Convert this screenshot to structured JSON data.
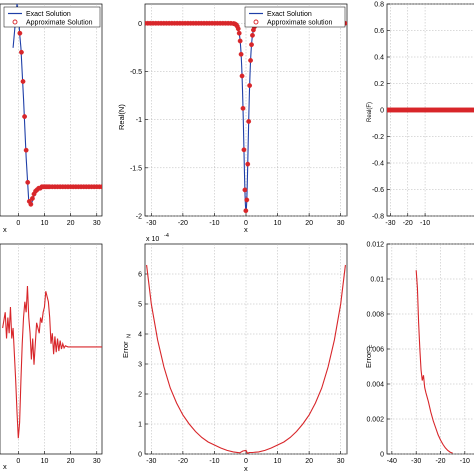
{
  "colors": {
    "exact": "#1f3fa8",
    "approx": "#d8262a",
    "error": "#d8262a"
  },
  "chart_data": [
    {
      "id": "p1",
      "type": "line",
      "xlabel": "x",
      "ylabel": "",
      "xlim": [
        -7,
        32
      ],
      "ylim": [
        -1.1,
        0.35
      ],
      "xticks": [
        0,
        10,
        20,
        30
      ],
      "yticks": [],
      "legend": {
        "placement": "top-right",
        "entries": [
          "Exact Solution",
          "Approximate Solution"
        ]
      },
      "series": [
        {
          "name": "Exact Solution",
          "style": "line",
          "color": "exact",
          "x": [
            -2,
            -1,
            -0.5,
            0,
            0.5,
            1,
            2,
            3,
            4,
            5,
            6,
            7,
            8,
            10,
            12,
            15,
            20,
            25,
            32
          ],
          "y": [
            0.05,
            0.25,
            0.35,
            0.3,
            0.15,
            0.05,
            -0.3,
            -0.7,
            -1.0,
            -1.02,
            -0.96,
            -0.93,
            -0.91,
            -0.9,
            -0.9,
            -0.9,
            -0.9,
            -0.9,
            -0.9
          ]
        },
        {
          "name": "Approximate Solution",
          "style": "markers",
          "color": "approx",
          "x": [
            -1,
            0,
            0.6,
            1.2,
            1.8,
            2.4,
            3,
            3.6,
            4.2,
            4.8,
            5.4,
            6,
            6.6,
            7.2,
            7.8,
            8.4,
            9,
            9.6,
            10.2,
            10.8,
            11.4,
            12,
            13,
            14,
            15,
            16,
            17,
            18,
            19,
            20,
            21,
            22,
            23,
            24,
            25,
            26,
            27,
            28,
            29,
            30,
            31,
            32
          ],
          "y": [
            0.25,
            0.3,
            0.15,
            0.02,
            -0.18,
            -0.42,
            -0.65,
            -0.87,
            -1.0,
            -1.02,
            -0.98,
            -0.95,
            -0.93,
            -0.92,
            -0.91,
            -0.91,
            -0.9,
            -0.9,
            -0.9,
            -0.9,
            -0.9,
            -0.9,
            -0.9,
            -0.9,
            -0.9,
            -0.9,
            -0.9,
            -0.9,
            -0.9,
            -0.9,
            -0.9,
            -0.9,
            -0.9,
            -0.9,
            -0.9,
            -0.9,
            -0.9,
            -0.9,
            -0.9,
            -0.9,
            -0.9,
            -0.9
          ]
        }
      ]
    },
    {
      "id": "p2",
      "type": "line",
      "xlabel": "x",
      "ylabel": "Real(N)",
      "xlim": [
        -32,
        32
      ],
      "ylim": [
        -2,
        0.2
      ],
      "xticks": [
        -30,
        -20,
        -10,
        0,
        10,
        20,
        30
      ],
      "yticks": [
        0,
        -0.5,
        -1,
        -1.5,
        -2
      ],
      "ytick_labels": [
        "0",
        "-0.5",
        "-1",
        "-1.5",
        "-2"
      ],
      "legend": {
        "placement": "top-right",
        "entries": [
          "Exact Solution",
          "Approximate solution"
        ]
      },
      "series": [
        {
          "name": "Exact Solution",
          "style": "line",
          "color": "exact",
          "func": "sech2",
          "amp": -1.95,
          "width": 1.0,
          "x": [
            -32,
            32
          ]
        },
        {
          "name": "Approximate solution",
          "style": "markers",
          "color": "approx",
          "func": "sech2",
          "amp": -1.95,
          "width": 1.0,
          "x": [
            -32,
            32
          ],
          "step_far": 0.85,
          "step_near": 0.3
        }
      ]
    },
    {
      "id": "p3",
      "type": "line",
      "xlabel": "",
      "ylabel": "Real(F)",
      "xlim": [
        -32,
        20
      ],
      "ylim": [
        -0.8,
        0.8
      ],
      "xticks": [
        -30,
        -20,
        -10
      ],
      "xtick_labels": [
        "-30",
        "-20",
        "-10"
      ],
      "yticks": [
        0.8,
        0.6,
        0.4,
        0.2,
        0,
        -0.2,
        -0.4,
        -0.6,
        -0.8
      ],
      "ytick_labels": [
        "0.8",
        "0.6",
        "0.4",
        "0.2",
        "0",
        "-0.2",
        "-0.4",
        "-0.6",
        "-0.8"
      ],
      "series": [
        {
          "name": "",
          "style": "markers",
          "color": "approx",
          "func": "zero",
          "x": [
            -32,
            20
          ],
          "step_far": 0.6
        }
      ]
    },
    {
      "id": "p4",
      "type": "line",
      "xlabel": "x",
      "ylabel": "",
      "xlim": [
        -7,
        32
      ],
      "ylim": [
        -1.0,
        1.0
      ],
      "xticks": [
        0,
        10,
        20,
        30
      ],
      "yticks": [],
      "series": [
        {
          "name": "",
          "style": "line",
          "color": "error",
          "x": [
            -6,
            -5,
            -4.5,
            -4,
            -3.5,
            -3,
            -2.5,
            -2,
            -1.5,
            -1,
            -0.5,
            0,
            0.5,
            1,
            1.5,
            2,
            2.5,
            3,
            3.5,
            4,
            4.5,
            5,
            5.5,
            6,
            6.5,
            7,
            7.5,
            8,
            8.5,
            9,
            9.5,
            10,
            10.5,
            11,
            11.5,
            12,
            12.5,
            13,
            13.5,
            14,
            14.5,
            15,
            15.5,
            16,
            16.5,
            17,
            17.5,
            18,
            19,
            20,
            22,
            25,
            28,
            32
          ],
          "y": [
            0.2,
            0.35,
            0.1,
            0.3,
            0.15,
            0.4,
            0.1,
            0.2,
            -0.05,
            -0.3,
            -0.6,
            -0.85,
            -0.7,
            -0.3,
            0.05,
            0.3,
            0.45,
            0.35,
            0.6,
            0.3,
            0.15,
            -0.1,
            0.1,
            -0.15,
            0.05,
            0.25,
            0.2,
            0.15,
            0.3,
            0.25,
            0.35,
            0.4,
            0.55,
            0.5,
            0.45,
            0.3,
            0.05,
            0.15,
            -0.05,
            0.12,
            -0.03,
            0.1,
            -0.02,
            0.08,
            0.0,
            0.05,
            0.01,
            0.03,
            0.02,
            0.02,
            0.02,
            0.02,
            0.02,
            0.02
          ]
        }
      ]
    },
    {
      "id": "p5",
      "type": "line",
      "xlabel": "x",
      "ylabel": "Error",
      "ylabel_sub": "N",
      "exponent_label": "x 10",
      "exponent_power": "-4",
      "xlim": [
        -32,
        32
      ],
      "ylim": [
        0,
        7
      ],
      "xticks": [
        -30,
        -20,
        -10,
        0,
        10,
        20,
        30
      ],
      "yticks": [
        0,
        1,
        2,
        3,
        4,
        5,
        6
      ],
      "ytick_labels": [
        "0",
        "1",
        "2",
        "3",
        "4",
        "5",
        "6"
      ],
      "series": [
        {
          "name": "",
          "style": "line",
          "color": "error",
          "x": [
            -31.5,
            -30,
            -28,
            -26,
            -24,
            -22,
            -20,
            -18,
            -16,
            -14,
            -12,
            -10,
            -8,
            -6,
            -4,
            -2,
            -1,
            0,
            0.5,
            1,
            2,
            4,
            6,
            8,
            10,
            12,
            14,
            16,
            18,
            20,
            22,
            24,
            26,
            28,
            30,
            31.5
          ],
          "y": [
            6.3,
            5.0,
            3.8,
            2.9,
            2.2,
            1.7,
            1.3,
            1.0,
            0.75,
            0.55,
            0.4,
            0.3,
            0.2,
            0.12,
            0.07,
            0.04,
            0.1,
            0.12,
            0.02,
            0.05,
            0.05,
            0.07,
            0.12,
            0.2,
            0.3,
            0.4,
            0.55,
            0.75,
            1.0,
            1.3,
            1.7,
            2.2,
            2.9,
            3.8,
            5.0,
            6.3
          ]
        }
      ]
    },
    {
      "id": "p6",
      "type": "line",
      "xlabel": "",
      "ylabel": "Error",
      "ylabel_sub": "F",
      "xlim": [
        -42,
        -5
      ],
      "ylim": [
        0,
        0.012
      ],
      "xticks": [
        -40,
        -30,
        -20,
        -10
      ],
      "xtick_labels": [
        "-40",
        "-30",
        "-20",
        "-10"
      ],
      "yticks": [
        0,
        0.002,
        0.004,
        0.006,
        0.008,
        0.01,
        0.012
      ],
      "ytick_labels": [
        "0",
        "0.002",
        "0.004",
        "0.006",
        "0.008",
        "0.01",
        "0.012"
      ],
      "series": [
        {
          "name": "",
          "style": "line",
          "color": "error",
          "x": [
            -30,
            -29.5,
            -29,
            -28.5,
            -28,
            -27.5,
            -27,
            -26.5,
            -26,
            -25,
            -24,
            -23,
            -22,
            -21,
            -20,
            -19,
            -18,
            -17,
            -16,
            -15
          ],
          "y": [
            0.0105,
            0.0095,
            0.0075,
            0.006,
            0.0048,
            0.0042,
            0.0045,
            0.0038,
            0.0035,
            0.003,
            0.0024,
            0.0019,
            0.0015,
            0.0011,
            0.0008,
            0.00055,
            0.00035,
            0.0002,
            0.0001,
            5e-05
          ]
        }
      ]
    }
  ]
}
